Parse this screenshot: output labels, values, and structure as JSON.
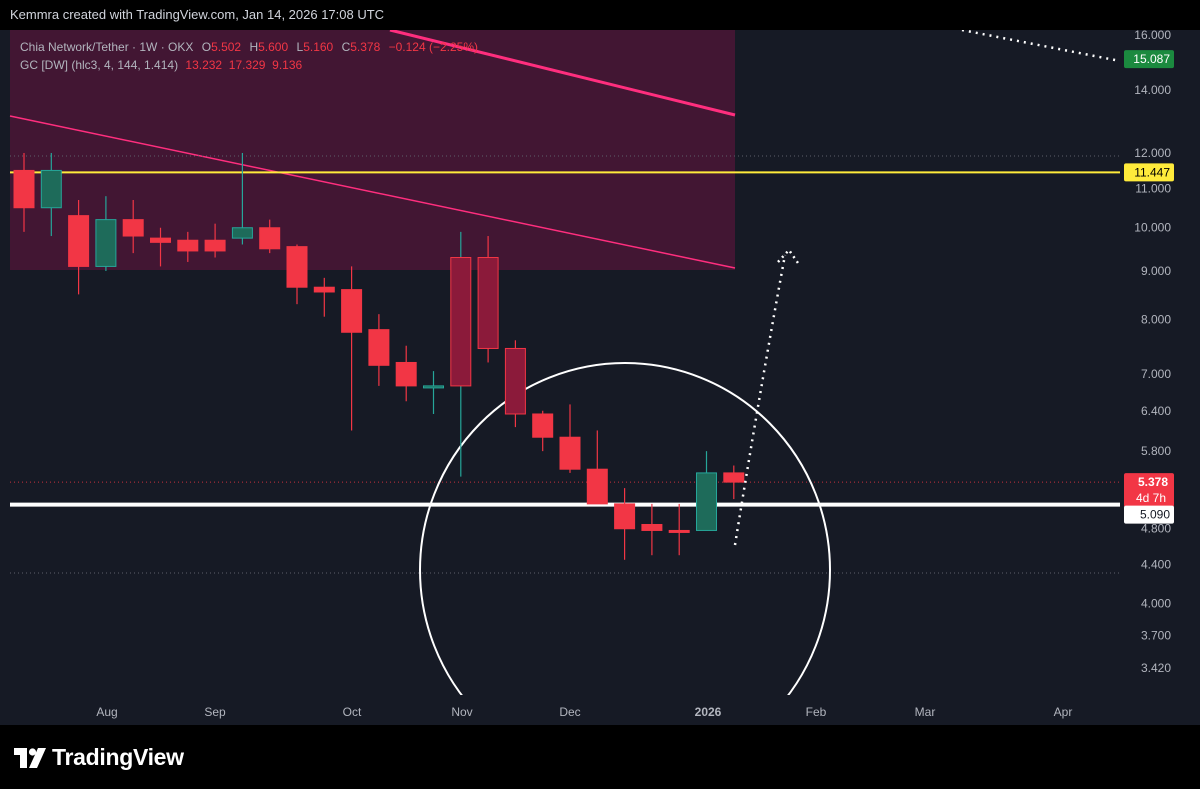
{
  "header": {
    "attribution": "Kemmra created with TradingView.com, Jan 14, 2026 17:08 UTC"
  },
  "legend": {
    "symbol": "Chia Network/Tether · 1W · OKX",
    "ohlc": [
      {
        "k": "O",
        "v": "5.502"
      },
      {
        "k": "H",
        "v": "5.600"
      },
      {
        "k": "L",
        "v": "5.160"
      },
      {
        "k": "C",
        "v": "5.378"
      }
    ],
    "change": "−0.124 (−2.25%)",
    "indicator": "GC [DW] (hlc3, 4, 144, 1.414)",
    "indicator_values": "13.232  17.329  9.136"
  },
  "footer": {
    "brand": "TradingView"
  },
  "colors": {
    "up": "#26a69a",
    "down": "#f23645",
    "up_body": "#1e6b5a",
    "down_body": "#f23645",
    "dark_body": "#8b1a3a",
    "yellow": "#ffeb3b",
    "pink": "#ff2e7e",
    "white": "#ffffff"
  },
  "chart_data": {
    "type": "candlestick",
    "scale": "log",
    "ylim": [
      3.3,
      16.4
    ],
    "y_ticks": [
      "16.000",
      "14.000",
      "12.000",
      "11.000",
      "10.000",
      "9.000",
      "8.000",
      "7.000",
      "6.400",
      "5.800",
      "4.800",
      "4.400",
      "4.000",
      "3.700",
      "3.420"
    ],
    "x_ticks": [
      "Aug",
      "Sep",
      "Oct",
      "Nov",
      "Dec",
      "2026",
      "Feb",
      "Mar",
      "Apr"
    ],
    "candles": [
      {
        "o": 11.5,
        "h": 12.0,
        "l": 9.9,
        "c": 10.5
      },
      {
        "o": 10.5,
        "h": 12.0,
        "l": 9.8,
        "c": 11.5
      },
      {
        "o": 10.3,
        "h": 10.7,
        "l": 8.5,
        "c": 9.1
      },
      {
        "o": 9.1,
        "h": 10.8,
        "l": 9.0,
        "c": 10.2
      },
      {
        "o": 10.2,
        "h": 10.7,
        "l": 9.4,
        "c": 9.8
      },
      {
        "o": 9.75,
        "h": 10.0,
        "l": 9.1,
        "c": 9.65
      },
      {
        "o": 9.7,
        "h": 9.9,
        "l": 9.2,
        "c": 9.45
      },
      {
        "o": 9.7,
        "h": 10.1,
        "l": 9.3,
        "c": 9.45
      },
      {
        "o": 9.75,
        "h": 12.0,
        "l": 9.6,
        "c": 10.0
      },
      {
        "o": 10.0,
        "h": 10.2,
        "l": 9.4,
        "c": 9.5
      },
      {
        "o": 9.55,
        "h": 9.6,
        "l": 8.3,
        "c": 8.65
      },
      {
        "o": 8.65,
        "h": 8.85,
        "l": 8.05,
        "c": 8.55
      },
      {
        "o": 8.6,
        "h": 9.1,
        "l": 6.1,
        "c": 7.75
      },
      {
        "o": 7.8,
        "h": 8.1,
        "l": 6.8,
        "c": 7.15
      },
      {
        "o": 7.2,
        "h": 7.5,
        "l": 6.55,
        "c": 6.8
      },
      {
        "o": 6.8,
        "h": 7.05,
        "l": 6.35,
        "c": 6.8
      },
      {
        "o": 6.8,
        "h": 9.9,
        "l": 5.45,
        "c": 9.3
      },
      {
        "o": 9.3,
        "h": 9.8,
        "l": 7.2,
        "c": 7.45
      },
      {
        "o": 7.45,
        "h": 7.6,
        "l": 6.15,
        "c": 6.35
      },
      {
        "o": 6.35,
        "h": 6.4,
        "l": 5.8,
        "c": 6.0
      },
      {
        "o": 6.0,
        "h": 6.5,
        "l": 5.5,
        "c": 5.55
      },
      {
        "o": 5.55,
        "h": 6.1,
        "l": 5.1,
        "c": 5.1
      },
      {
        "o": 5.1,
        "h": 5.3,
        "l": 4.45,
        "c": 4.8
      },
      {
        "o": 4.85,
        "h": 5.1,
        "l": 4.5,
        "c": 4.78
      },
      {
        "o": 4.78,
        "h": 5.1,
        "l": 4.5,
        "c": 4.76
      },
      {
        "o": 4.78,
        "h": 5.8,
        "l": 4.78,
        "c": 5.5
      },
      {
        "o": 5.5,
        "h": 5.6,
        "l": 5.16,
        "c": 5.378
      }
    ],
    "levels": [
      {
        "value": 11.447,
        "label": "11.447",
        "color": "#ffeb3b"
      },
      {
        "value": 5.09,
        "label": "5.090",
        "color": "#ffffff"
      }
    ],
    "price_label": {
      "value": 5.378,
      "label": "5.378",
      "countdown": "4d 7h"
    },
    "projection_label": {
      "value": 15.087,
      "label": "15.087"
    }
  }
}
